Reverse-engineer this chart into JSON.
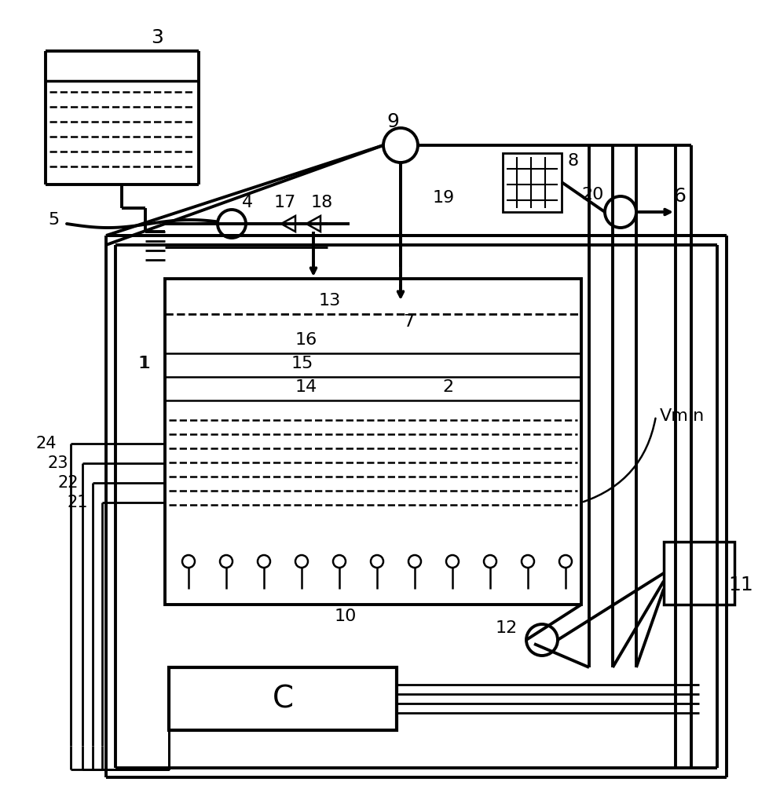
{
  "bg_color": "#ffffff",
  "line_color": "#000000",
  "font_size": 16
}
